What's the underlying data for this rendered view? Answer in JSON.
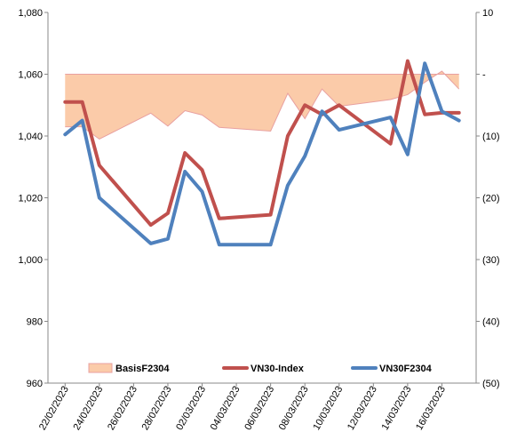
{
  "chart_data": {
    "type": "line",
    "x": [
      "22/02/2023",
      "23/02/2023",
      "24/02/2023",
      "27/02/2023",
      "28/02/2023",
      "01/03/2023",
      "02/03/2023",
      "03/03/2023",
      "06/03/2023",
      "07/03/2023",
      "08/03/2023",
      "09/03/2023",
      "10/03/2023",
      "13/03/2023",
      "14/03/2023",
      "15/03/2023",
      "16/03/2023",
      "17/03/2023"
    ],
    "x_tick_labels": [
      "22/02/2023",
      "24/02/2023",
      "26/02/2023",
      "28/02/2023",
      "02/03/2023",
      "04/03/2023",
      "06/03/2023",
      "08/03/2023",
      "10/03/2023",
      "12/03/2023",
      "14/03/2023",
      "16/03/2023"
    ],
    "y_left": {
      "range": [
        960,
        1080
      ],
      "ticks": [
        "960",
        "980",
        "1,000",
        "1,020",
        "1,040",
        "1,060",
        "1,080"
      ]
    },
    "y_right": {
      "range": [
        -50,
        10
      ],
      "ticks": [
        "(50)",
        "(40)",
        "(30)",
        "(20)",
        "(10)",
        "-",
        "10"
      ]
    },
    "series": [
      {
        "name": "BasisF2304",
        "type": "area",
        "axis": "right",
        "color": "#FBCBA9",
        "edge_color": "#E8A0A0",
        "values": [
          -8.5,
          -8.5,
          -10.5,
          -6.3,
          -8.4,
          -5.9,
          -6.6,
          -8.6,
          -9.2,
          -3.1,
          -7.2,
          -2.4,
          -5.2,
          -4.1,
          -3.3,
          -1.3,
          0.5,
          -2.4
        ]
      },
      {
        "name": "VN30-Index",
        "type": "line",
        "axis": "left",
        "color": "#C0504D",
        "values": [
          1051,
          1051,
          1030.5,
          1011.2,
          1015,
          1034.5,
          1029,
          1013.3,
          1014.5,
          1040,
          1050,
          1047,
          1050,
          1037.5,
          1064.3,
          1047,
          1047.5,
          1047.5
        ]
      },
      {
        "name": "VN30F2304",
        "type": "line",
        "axis": "left",
        "color": "#4F81BD",
        "values": [
          1040.5,
          1045,
          1020,
          1005.2,
          1006.7,
          1028.5,
          1022,
          1004.8,
          1004.8,
          1024,
          1033.5,
          1048,
          1042,
          1046,
          1034,
          1063.5,
          1048,
          1045
        ]
      }
    ],
    "legend": {
      "placement": "bottom-inside"
    },
    "grid": false
  }
}
